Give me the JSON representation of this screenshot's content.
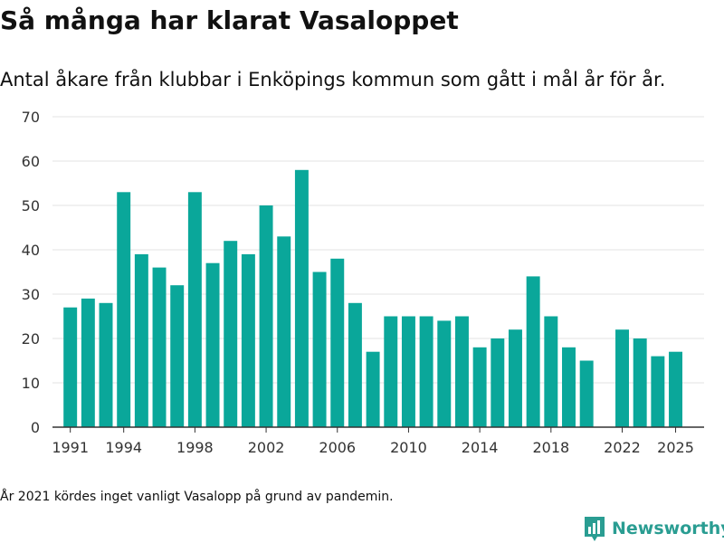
{
  "header": {
    "title": "Så många har klarat Vasaloppet",
    "subtitle": "Antal åkare från klubbar i Enköpings kommun som gått i mål år för år."
  },
  "footer": {
    "note": "År 2021 kördes inget vanligt Vasalopp på grund av pandemin.",
    "brand": "Newsworthy",
    "brand_icon": "bar-chart-logo-icon"
  },
  "colors": {
    "bar": "#0aa79a",
    "grid": "#e3e3e3",
    "axis": "#333333",
    "brand": "#2a9d92"
  },
  "chart_data": {
    "type": "bar",
    "title": "",
    "xlabel": "",
    "ylabel": "",
    "ylim": [
      0,
      70
    ],
    "yticks": [
      0,
      10,
      20,
      30,
      40,
      50,
      60,
      70
    ],
    "xticks": [
      1991,
      1994,
      1998,
      2002,
      2006,
      2010,
      2014,
      2018,
      2022,
      2025
    ],
    "grid": true,
    "x": [
      1991,
      1992,
      1993,
      1994,
      1995,
      1996,
      1997,
      1998,
      1999,
      2000,
      2001,
      2002,
      2003,
      2004,
      2005,
      2006,
      2007,
      2008,
      2009,
      2010,
      2011,
      2012,
      2013,
      2014,
      2015,
      2016,
      2017,
      2018,
      2019,
      2020,
      2022,
      2023,
      2024,
      2025
    ],
    "values": [
      27,
      29,
      28,
      53,
      39,
      36,
      32,
      53,
      37,
      42,
      39,
      50,
      43,
      58,
      35,
      38,
      28,
      17,
      25,
      25,
      25,
      24,
      25,
      18,
      20,
      22,
      34,
      25,
      18,
      15,
      22,
      20,
      16,
      17
    ]
  }
}
